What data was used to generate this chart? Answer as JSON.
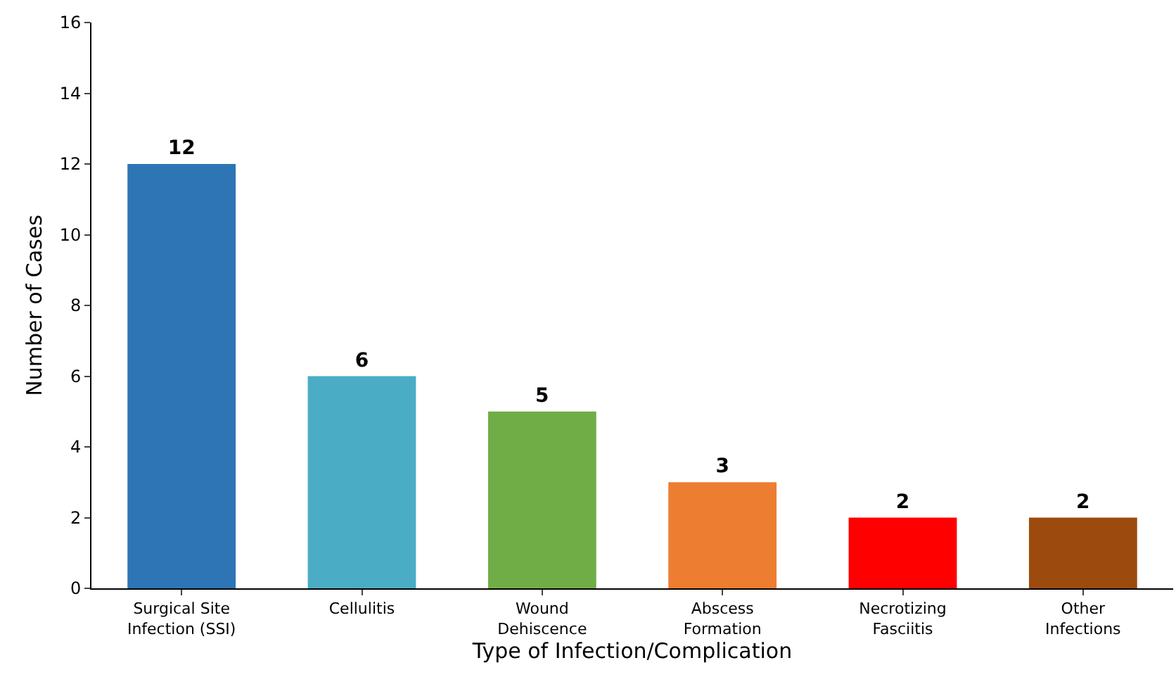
{
  "chart_data": {
    "type": "bar",
    "xlabel": "Type of Infection/Complication",
    "ylabel": "Number of Cases",
    "categories": [
      "Surgical Site\nInfection (SSI)",
      "Cellulitis",
      "Wound\nDehiscence",
      "Abscess\nFormation",
      "Necrotizing\nFasciitis",
      "Other\nInfections"
    ],
    "values": [
      12,
      6,
      5,
      3,
      2,
      2
    ],
    "colors": [
      "#2e75b6",
      "#4bacc6",
      "#70ad47",
      "#ed7d31",
      "#ff0000",
      "#9c4a0e"
    ],
    "ylim": [
      0,
      16
    ],
    "yticks": [
      0,
      2,
      4,
      6,
      8,
      10,
      12,
      14,
      16
    ],
    "data_labels": true,
    "grid": false,
    "legend": false
  }
}
